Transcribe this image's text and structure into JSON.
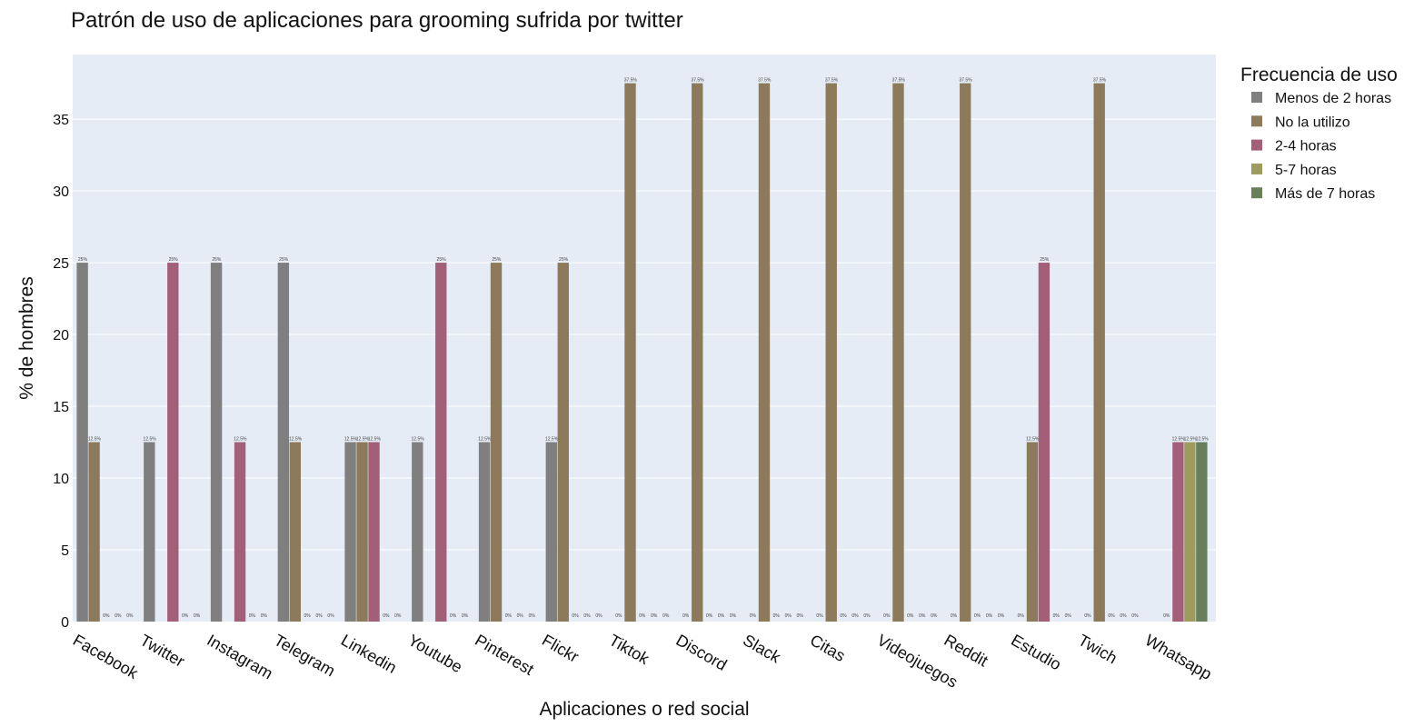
{
  "chart_data": {
    "type": "bar",
    "title": "Patrón de uso de aplicaciones para grooming sufrida por twitter",
    "xlabel": "Aplicaciones o red social",
    "ylabel": "% de hombres",
    "ylim": [
      0,
      39.5
    ],
    "yticks": [
      0,
      5,
      10,
      15,
      20,
      25,
      30,
      35
    ],
    "grid": true,
    "legend_title": "Frecuencia de uso",
    "legend_position": "top-right",
    "categories": [
      "Facebook",
      "Twitter",
      "Instagram",
      "Telegram",
      "Linkedin",
      "Youtube",
      "Pinterest",
      "Flickr",
      "Tiktok",
      "Discord",
      "Slack",
      "Citas",
      "Videojuegos",
      "Reddit",
      "Estudio",
      "Twich",
      "Whatsapp"
    ],
    "series": [
      {
        "name": "Menos de 2 horas",
        "color": "#7f7f7f",
        "values": [
          25,
          12.5,
          25,
          25,
          12.5,
          12.5,
          12.5,
          12.5,
          0,
          0,
          0,
          0,
          0,
          0,
          0,
          0,
          null
        ],
        "labels": [
          "25%",
          "12.5%",
          "25%",
          "25%",
          "12.5%",
          "12.5%",
          "12.5%",
          "12.5%",
          "0%",
          "0%",
          "0%",
          "0%",
          "0%",
          "0%",
          "0%",
          "0%",
          ""
        ]
      },
      {
        "name": "No la utilizo",
        "color": "#8c7a5b",
        "values": [
          12.5,
          null,
          null,
          12.5,
          12.5,
          null,
          25,
          25,
          37.5,
          37.5,
          37.5,
          37.5,
          37.5,
          37.5,
          12.5,
          37.5,
          0
        ],
        "labels": [
          "12.5%",
          "",
          "",
          "12.5%",
          "12.5%",
          "",
          "25%",
          "25%",
          "37.5%",
          "37.5%",
          "37.5%",
          "37.5%",
          "37.5%",
          "37.5%",
          "12.5%",
          "37.5%",
          "0%"
        ]
      },
      {
        "name": "2-4 horas",
        "color": "#a35f78",
        "values": [
          0,
          25,
          12.5,
          0,
          12.5,
          25,
          0,
          0,
          0,
          0,
          0,
          0,
          0,
          0,
          25,
          0,
          12.5
        ],
        "labels": [
          "0%",
          "25%",
          "12.5%",
          "0%",
          "12.5%",
          "25%",
          "0%",
          "0%",
          "0%",
          "0%",
          "0%",
          "0%",
          "0%",
          "0%",
          "25%",
          "0%",
          "12.5%"
        ]
      },
      {
        "name": "5-7 horas",
        "color": "#9d9b5d",
        "values": [
          0,
          0,
          0,
          0,
          0,
          0,
          0,
          0,
          0,
          0,
          0,
          0,
          0,
          0,
          0,
          0,
          12.5
        ],
        "labels": [
          "0%",
          "0%",
          "0%",
          "0%",
          "0%",
          "0%",
          "0%",
          "0%",
          "0%",
          "0%",
          "0%",
          "0%",
          "0%",
          "0%",
          "0%",
          "0%",
          "12.5%"
        ]
      },
      {
        "name": "Más de 7 horas",
        "color": "#67805a",
        "values": [
          0,
          0,
          0,
          0,
          0,
          0,
          0,
          0,
          0,
          0,
          0,
          0,
          0,
          0,
          0,
          0,
          12.5
        ],
        "labels": [
          "0%",
          "0%",
          "0%",
          "0%",
          "0%",
          "0%",
          "0%",
          "0%",
          "0%",
          "0%",
          "0%",
          "0%",
          "0%",
          "0%",
          "0%",
          "0%",
          "12.5%"
        ]
      }
    ]
  }
}
